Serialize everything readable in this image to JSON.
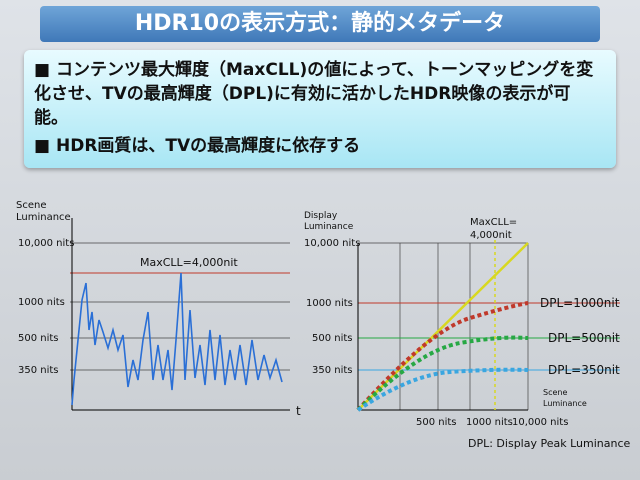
{
  "header": {
    "title": "HDR10の表示方式：静的メタデータ"
  },
  "bullets": [
    "コンテンツ最大輝度（MaxCLL)の値によって、トーンマッピングを変化させ、TVの最高輝度（DPL)に有効に活かしたHDR映像の表示が可能。",
    "HDR画質は、TVの最高輝度に依存する"
  ],
  "left": {
    "y_title_lines": [
      "Scene",
      "Luminance"
    ],
    "levels": [
      "10,000 nits",
      "1000 nits",
      "500 nits",
      "350 nits"
    ],
    "annotation": "MaxCLL=4,000nit",
    "x_title": "t"
  },
  "right": {
    "y_title_lines": [
      "Display",
      "Luminance"
    ],
    "levels": [
      "10,000 nits",
      "1000 nits",
      "500 nits",
      "350 nits"
    ],
    "annotation_lines": [
      "MaxCLL=",
      "4,000nit"
    ],
    "x_ticks": [
      "500 nits",
      "1000 nits",
      "10,000 nits"
    ],
    "x_title_lines": [
      "Scene",
      "Luminance"
    ],
    "curve_labels": [
      "DPL=1000nit",
      "DPL=500nit",
      "DPL=350nit"
    ],
    "footnote": "DPL: Display Peak Luminance"
  }
}
